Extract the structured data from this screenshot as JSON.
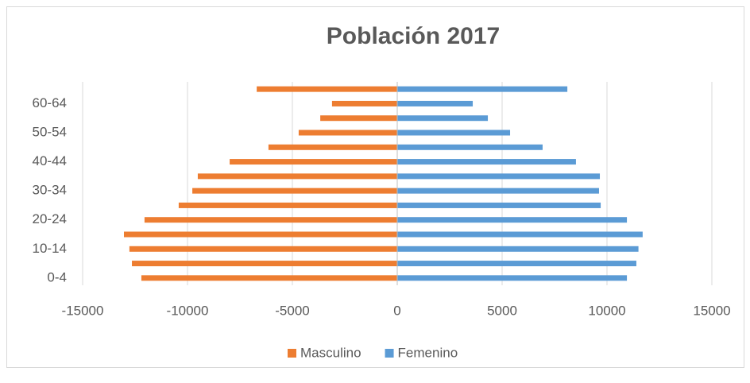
{
  "chart_data": {
    "type": "bar",
    "orientation": "horizontal",
    "title": "Población 2017",
    "categories": [
      "0-4",
      null,
      "10-14",
      null,
      "20-24",
      null,
      "30-34",
      null,
      "40-44",
      null,
      "50-54",
      null,
      "60-64",
      null
    ],
    "series": [
      {
        "name": "Masculino",
        "color": "#ED7D31",
        "values": [
          -12200,
          -12650,
          -12770,
          -13030,
          -12050,
          -10420,
          -9770,
          -9510,
          -7990,
          -6140,
          -4700,
          -3670,
          -3110,
          -6700
        ]
      },
      {
        "name": "Femenino",
        "color": "#5B9BD5",
        "values": [
          10950,
          11400,
          11500,
          11700,
          10950,
          9700,
          9620,
          9660,
          8520,
          6930,
          5380,
          4320,
          3600,
          8110
        ]
      }
    ],
    "xlim": [
      -15000,
      15000
    ],
    "xticks": [
      -15000,
      -10000,
      -5000,
      0,
      5000,
      10000,
      15000
    ],
    "grid": true,
    "legend": "bottom"
  }
}
